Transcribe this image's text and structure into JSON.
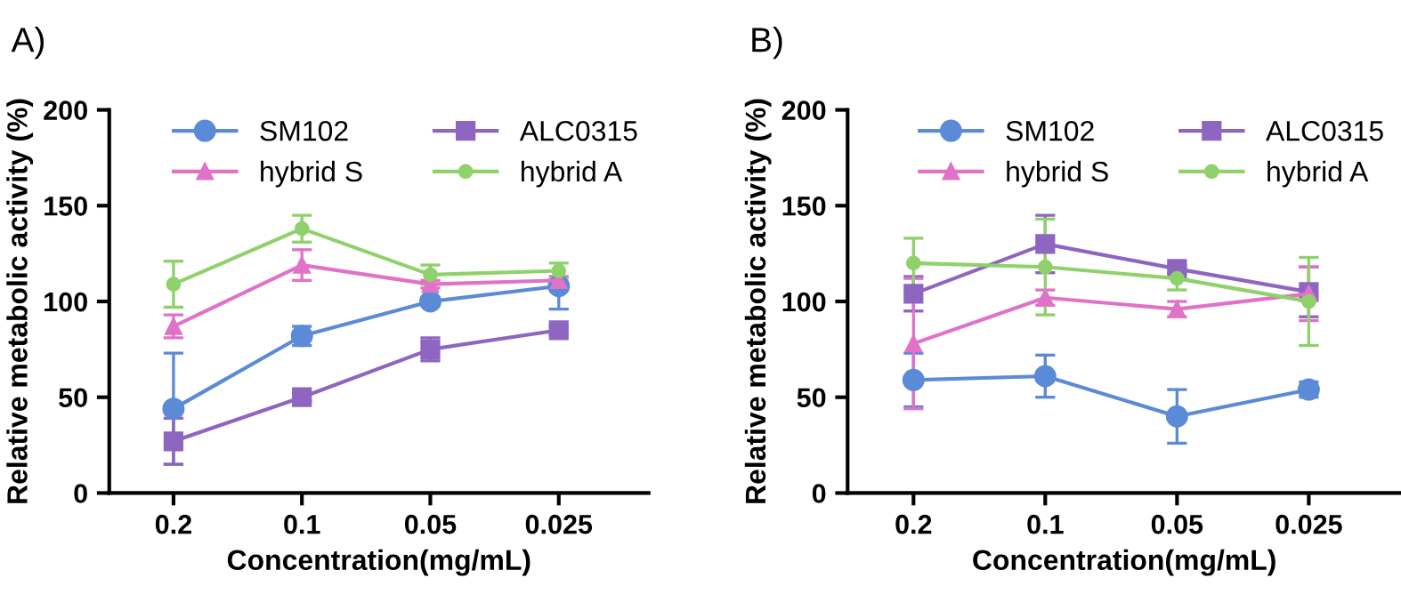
{
  "chart_data": [
    {
      "type": "line",
      "title": "A)",
      "xlabel": "Concentration(mg/mL)",
      "ylabel": "Relative metabolic activity (%)",
      "categories": [
        "0.2",
        "0.1",
        "0.05",
        "0.025"
      ],
      "ylim": [
        0,
        200
      ],
      "yticks": [
        0,
        50,
        100,
        150,
        200
      ],
      "grid": false,
      "legend": "top",
      "line_style": "solid",
      "series": [
        {
          "name": "SM102",
          "color": "#5b8bd6",
          "marker": "circle",
          "values": [
            44,
            82,
            100,
            108
          ],
          "errors": [
            [
              15,
              73
            ],
            5,
            2,
            [
              96,
              110
            ]
          ]
        },
        {
          "name": "ALC0315",
          "color": "#8e65c0",
          "marker": "square",
          "values": [
            27,
            50,
            75,
            85
          ],
          "errors": [
            12,
            2,
            6,
            2
          ]
        },
        {
          "name": "hybrid S",
          "color": "#e072c8",
          "marker": "triangle",
          "values": [
            87,
            119,
            109,
            111
          ],
          "errors": [
            6,
            8,
            2,
            2
          ]
        },
        {
          "name": "hybrid A",
          "color": "#8fd16a",
          "marker": "circle",
          "values": [
            109,
            138,
            114,
            116
          ],
          "errors": [
            12,
            7,
            5,
            4
          ]
        }
      ]
    },
    {
      "type": "line",
      "title": "B)",
      "xlabel": "Concentration(mg/mL)",
      "ylabel": "Relative metabolic activity (%)",
      "categories": [
        "0.2",
        "0.1",
        "0.05",
        "0.025"
      ],
      "ylim": [
        0,
        200
      ],
      "yticks": [
        0,
        50,
        100,
        150,
        200
      ],
      "grid": false,
      "legend": "top",
      "line_style": "solid",
      "series": [
        {
          "name": "SM102",
          "color": "#5b8bd6",
          "marker": "circle",
          "values": [
            59,
            61,
            40,
            54
          ],
          "errors": [
            14,
            11,
            14,
            4
          ]
        },
        {
          "name": "ALC0315",
          "color": "#8e65c0",
          "marker": "square",
          "values": [
            104,
            130,
            117,
            105
          ],
          "errors": [
            9,
            15,
            2,
            13
          ]
        },
        {
          "name": "hybrid S",
          "color": "#e072c8",
          "marker": "triangle",
          "values": [
            78,
            102,
            96,
            104
          ],
          "errors": [
            34,
            4,
            4,
            14
          ]
        },
        {
          "name": "hybrid A",
          "color": "#8fd16a",
          "marker": "circle",
          "values": [
            120,
            118,
            112,
            100
          ],
          "errors": [
            13,
            25,
            6,
            23
          ]
        }
      ]
    }
  ]
}
